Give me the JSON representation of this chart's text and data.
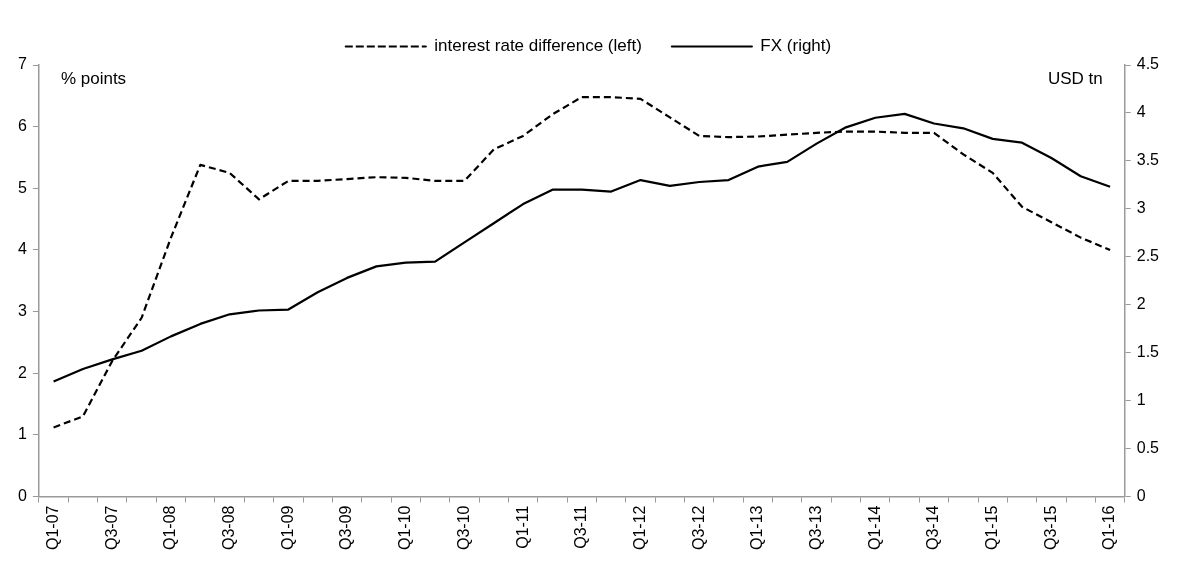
{
  "chart_data": {
    "type": "line",
    "ylabel": "% points",
    "y2label": "USD tn",
    "categories": [
      "Q1-07",
      null,
      "Q3-07",
      null,
      "Q1-08",
      null,
      "Q3-08",
      null,
      "Q1-09",
      null,
      "Q3-09",
      null,
      "Q1-10",
      null,
      "Q3-10",
      null,
      "Q1-11",
      null,
      "Q3-11",
      null,
      "Q1-12",
      null,
      "Q3-12",
      null,
      "Q1-13",
      null,
      "Q3-13",
      null,
      "Q1-14",
      null,
      "Q3-14",
      null,
      "Q1-15",
      null,
      "Q3-15",
      null,
      "Q1-16"
    ],
    "series": [
      {
        "name": "interest rate difference (left)",
        "color": "#000000",
        "line_style": "dashed",
        "values": [
          1.12,
          1.3,
          2.2,
          2.9,
          4.2,
          5.38,
          5.25,
          4.82,
          5.12,
          5.12,
          5.15,
          5.18,
          5.17,
          5.12,
          5.12,
          5.63,
          5.85,
          6.2,
          6.48,
          6.48,
          6.45,
          6.15,
          5.85,
          5.83,
          5.84,
          5.87,
          5.9,
          5.92,
          5.92,
          5.9,
          5.9,
          5.55,
          5.25,
          4.7,
          4.45,
          4.2,
          4.0
        ]
      },
      {
        "name": "FX (right)",
        "color": "#000000",
        "line_style": "solid",
        "axis": "y2",
        "values": [
          1.2,
          1.33,
          1.43,
          1.52,
          1.67,
          1.8,
          1.9,
          1.94,
          1.95,
          2.13,
          2.28,
          2.4,
          2.44,
          2.45,
          2.65,
          2.85,
          3.05,
          3.2,
          3.2,
          3.18,
          3.3,
          3.24,
          3.28,
          3.3,
          3.44,
          3.49,
          3.68,
          3.85,
          3.95,
          3.99,
          3.89,
          3.84,
          3.73,
          3.69,
          3.53,
          3.34,
          3.23
        ]
      }
    ],
    "ylim": [
      0,
      7
    ],
    "yticks": [
      0,
      1,
      2,
      3,
      4,
      5,
      6,
      7
    ],
    "y2lim": [
      0,
      4.5
    ],
    "y2ticks": [
      0,
      0.5,
      1,
      1.5,
      2,
      2.5,
      3,
      3.5,
      4,
      4.5
    ],
    "grid": false,
    "legend": "top",
    "marker": "none"
  }
}
